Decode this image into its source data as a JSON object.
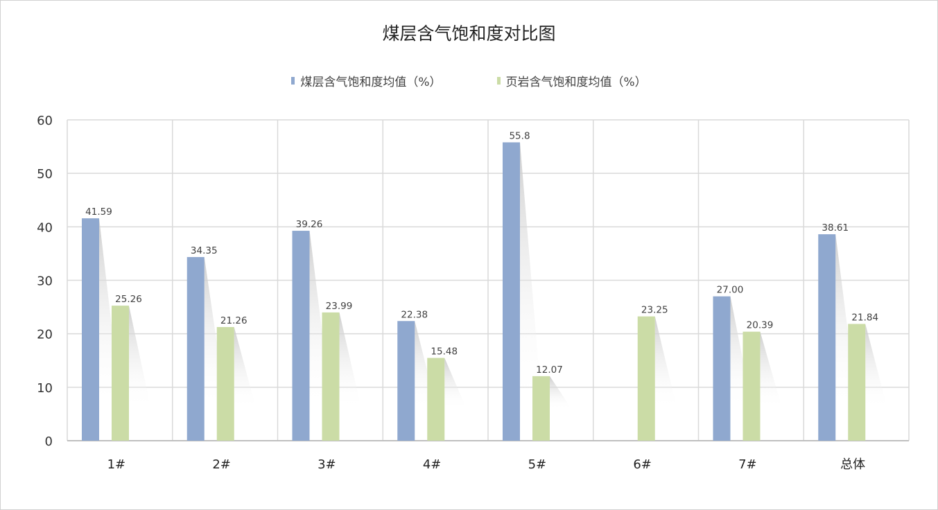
{
  "chart_data": {
    "type": "bar",
    "title": "煤层含气饱和度对比图",
    "categories": [
      "1#",
      "2#",
      "3#",
      "4#",
      "5#",
      "6#",
      "7#",
      "总体"
    ],
    "series": [
      {
        "name": "煤层含气饱和度均值（%）",
        "color": "#8FA8CF",
        "values": [
          41.59,
          34.35,
          39.26,
          22.38,
          55.8,
          null,
          27.0,
          38.61
        ],
        "labels": [
          "41.59",
          "34.35",
          "39.26",
          "22.38",
          "55.8",
          "",
          "27.00",
          "38.61"
        ]
      },
      {
        "name": "页岩含气饱和度均值（%）",
        "color": "#CBDCA6",
        "values": [
          25.26,
          21.26,
          23.99,
          15.48,
          12.07,
          23.25,
          20.39,
          21.84
        ],
        "labels": [
          "25.26",
          "21.26",
          "23.99",
          "15.48",
          "12.07",
          "23.25",
          "20.39",
          "21.84"
        ]
      }
    ],
    "ylim": [
      0,
      60
    ],
    "yticks": [
      0,
      10,
      20,
      30,
      40,
      50,
      60
    ],
    "grid": true,
    "legend_position": "top"
  }
}
